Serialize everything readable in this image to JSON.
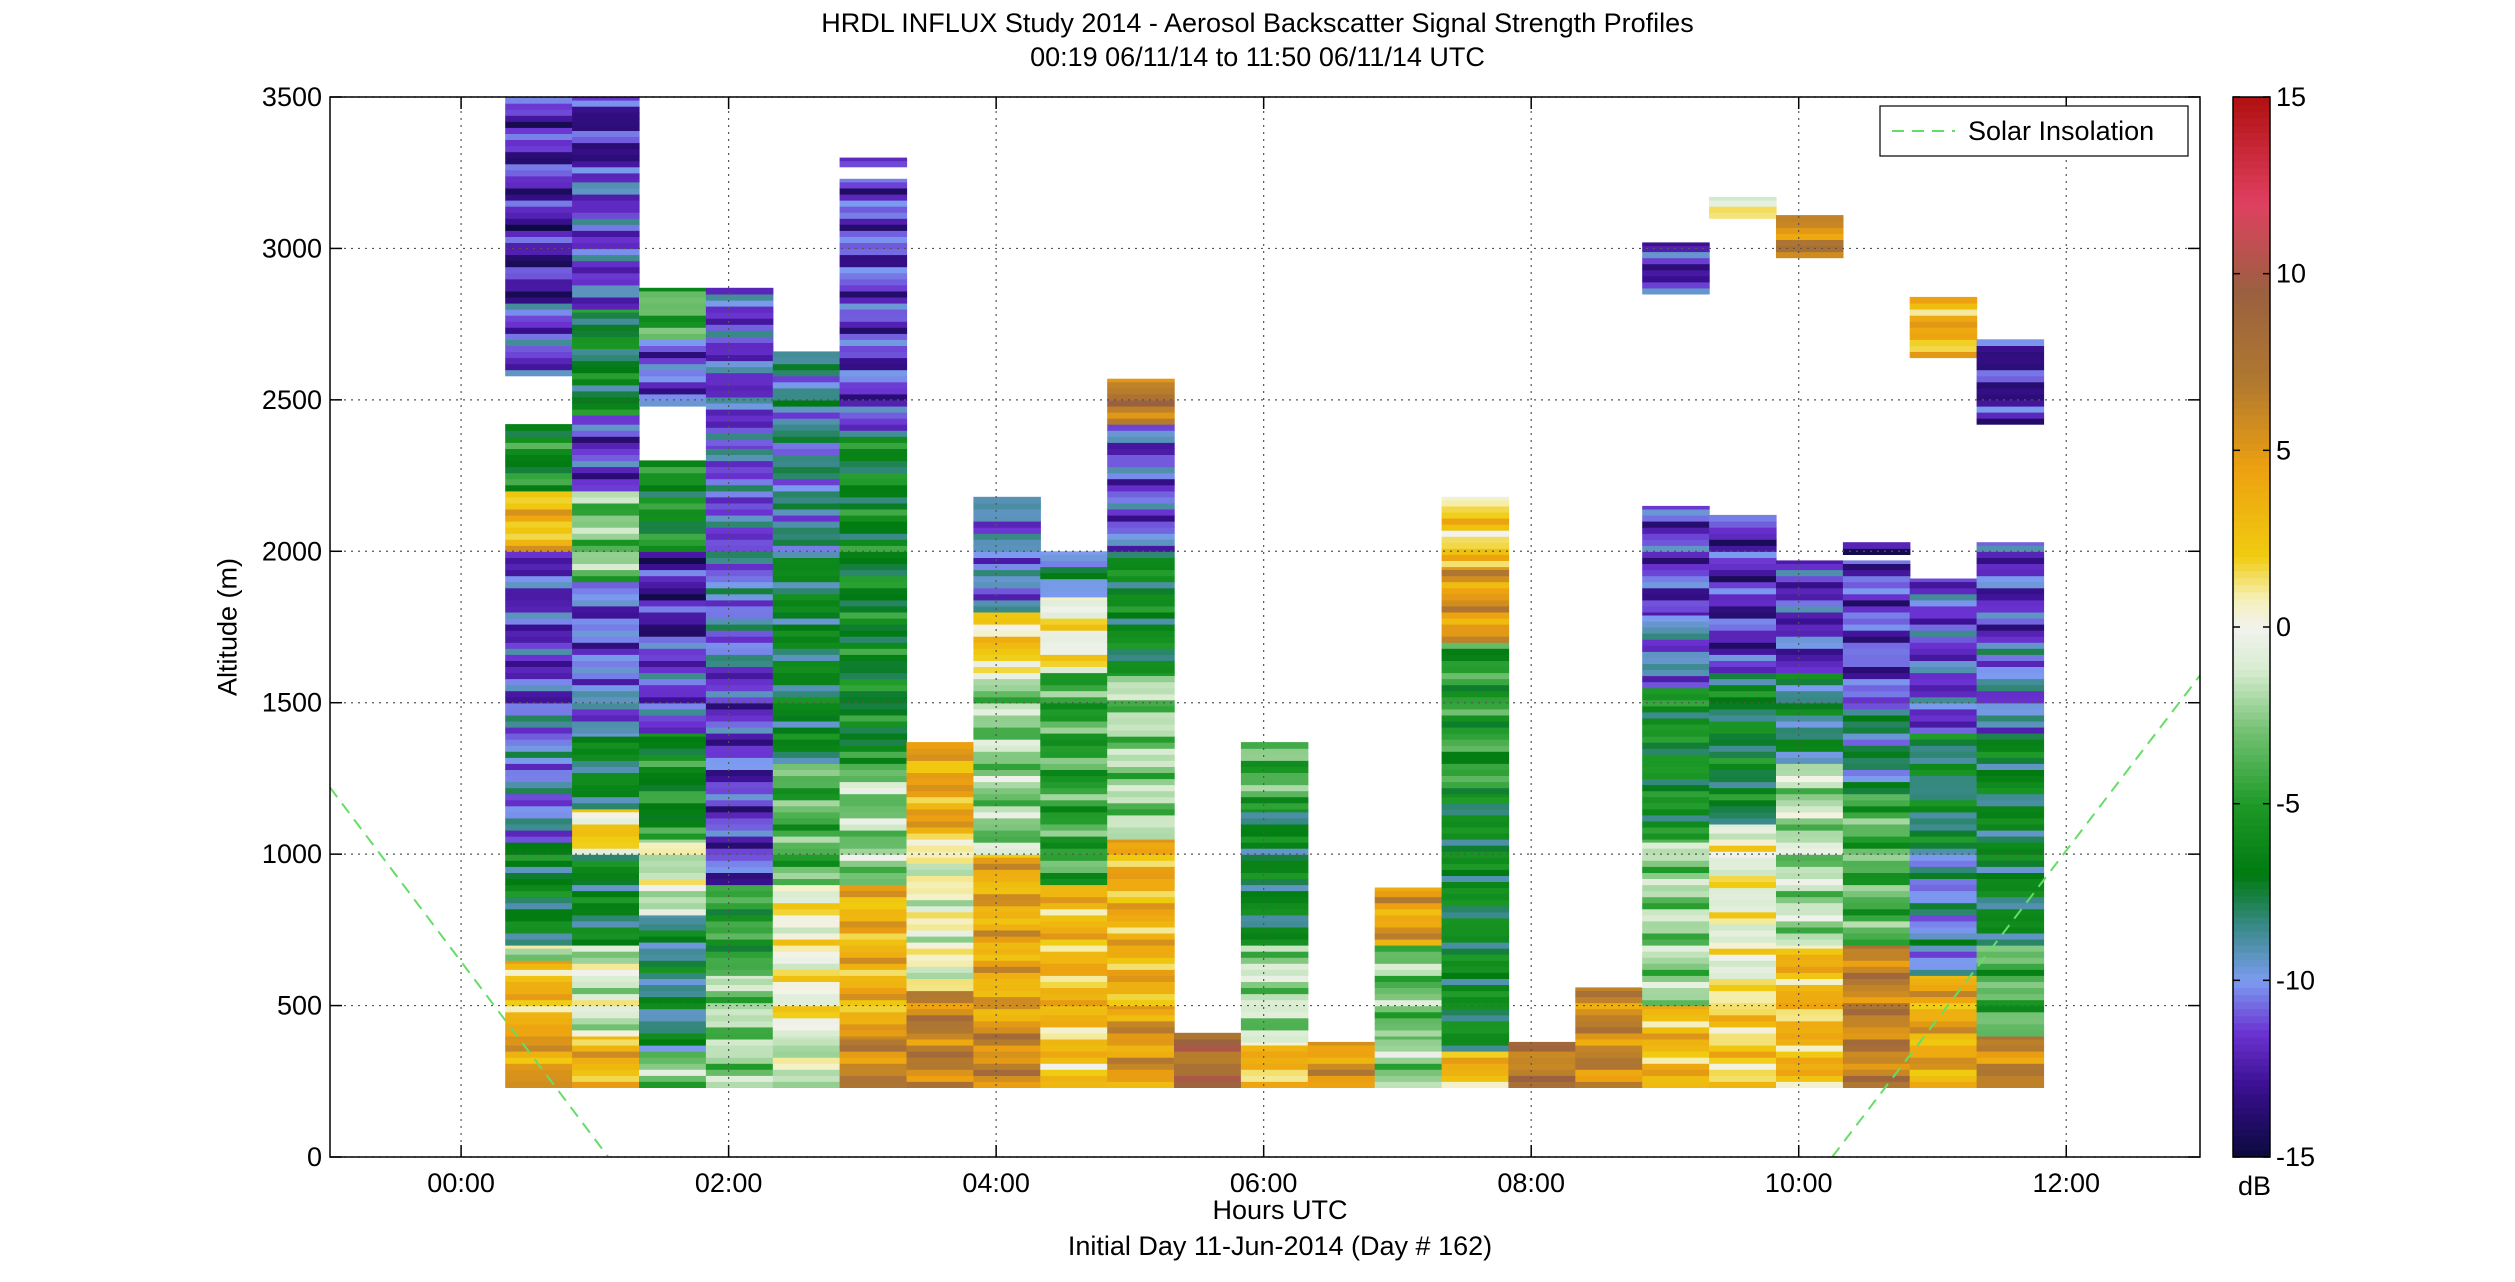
{
  "chart_data": {
    "type": "heatmap",
    "title": "HRDL INFLUX Study 2014 - Aerosol Backscatter Signal Strength Profiles",
    "subtitle": "00:19 06/11/14 to 11:50 06/11/14  UTC",
    "xlabel": "Hours UTC",
    "xlabel2": "Initial Day 11-Jun-2014 (Day # 162)",
    "ylabel": "Altitude (m)",
    "xlim": [
      -0.98,
      13.0
    ],
    "ylim": [
      0,
      3500
    ],
    "grid": true,
    "xticks": [
      {
        "value": 0,
        "label": "00:00"
      },
      {
        "value": 2,
        "label": "02:00"
      },
      {
        "value": 4,
        "label": "04:00"
      },
      {
        "value": 6,
        "label": "06:00"
      },
      {
        "value": 8,
        "label": "08:00"
      },
      {
        "value": 10,
        "label": "10:00"
      },
      {
        "value": 12,
        "label": "12:00"
      }
    ],
    "yticks": [
      0,
      500,
      1000,
      1500,
      2000,
      2500,
      3000,
      3500
    ],
    "colorbar": {
      "label": "dB",
      "min": -15,
      "max": 15,
      "ticks": [
        15,
        10,
        5,
        0,
        -5,
        -10,
        -15
      ],
      "stops": [
        {
          "v": -15,
          "c": "#0a0a3c"
        },
        {
          "v": -13,
          "c": "#3a0f90"
        },
        {
          "v": -11.5,
          "c": "#6a32d0"
        },
        {
          "v": -10,
          "c": "#7c9cf0"
        },
        {
          "v": -8.5,
          "c": "#3a8a8a"
        },
        {
          "v": -7,
          "c": "#007a10"
        },
        {
          "v": -5,
          "c": "#1e9a28"
        },
        {
          "v": -3,
          "c": "#70c070"
        },
        {
          "v": -1.2,
          "c": "#d8ecd0"
        },
        {
          "v": 0,
          "c": "#f2f2ee"
        },
        {
          "v": 0.8,
          "c": "#f5f0b8"
        },
        {
          "v": 2,
          "c": "#f0cc10"
        },
        {
          "v": 4.5,
          "c": "#eda010"
        },
        {
          "v": 7,
          "c": "#b07830"
        },
        {
          "v": 9.5,
          "c": "#9a6040"
        },
        {
          "v": 12,
          "c": "#e04060"
        },
        {
          "v": 15,
          "c": "#b01010"
        }
      ]
    },
    "legend": {
      "entries": [
        "Solar Insolation"
      ],
      "placement": "top-right"
    },
    "series": [
      {
        "name": "Solar Insolation",
        "style": "dashed",
        "color": "#66dd66",
        "points": [
          [
            -0.98,
            1220
          ],
          [
            1.1,
            0
          ],
          [
            10.25,
            0
          ],
          [
            13.0,
            1590
          ]
        ]
      }
    ],
    "profiles": [
      {
        "t": 0.58,
        "segs": [
          [
            230,
            400,
            4.5
          ],
          [
            400,
            650,
            3
          ],
          [
            650,
            700,
            -1
          ],
          [
            700,
            1040,
            -7
          ],
          [
            1040,
            1500,
            -10
          ],
          [
            1500,
            2000,
            -11.5
          ],
          [
            2000,
            2200,
            3
          ],
          [
            2200,
            2420,
            -6
          ],
          [
            2580,
            2820,
            -11
          ],
          [
            2820,
            3180,
            -12.5
          ],
          [
            3180,
            3500,
            -12
          ]
        ]
      },
      {
        "t": 1.08,
        "segs": [
          [
            230,
            400,
            3.5
          ],
          [
            400,
            700,
            -1
          ],
          [
            700,
            1000,
            -7
          ],
          [
            1000,
            1150,
            1.5
          ],
          [
            1150,
            1400,
            -7
          ],
          [
            1400,
            1600,
            -10
          ],
          [
            1600,
            1900,
            -11
          ],
          [
            1900,
            2200,
            -3
          ],
          [
            2200,
            2450,
            -11.5
          ],
          [
            2450,
            2800,
            -7
          ],
          [
            2800,
            3230,
            -11
          ],
          [
            3230,
            3500,
            -12.5
          ]
        ]
      },
      {
        "t": 1.58,
        "segs": [
          [
            230,
            350,
            -3
          ],
          [
            350,
            800,
            -8
          ],
          [
            800,
            1050,
            -1
          ],
          [
            1050,
            1400,
            -6
          ],
          [
            1400,
            1700,
            -11
          ],
          [
            1700,
            2000,
            -12.5
          ],
          [
            2000,
            2300,
            -6
          ],
          [
            2480,
            2700,
            -11
          ],
          [
            2700,
            2870,
            -4
          ]
        ]
      },
      {
        "t": 2.08,
        "segs": [
          [
            230,
            600,
            -2.5
          ],
          [
            600,
            900,
            -5
          ],
          [
            900,
            1600,
            -11.5
          ],
          [
            1600,
            2000,
            -10
          ],
          [
            2000,
            2350,
            -10.5
          ],
          [
            2350,
            2870,
            -11
          ]
        ]
      },
      {
        "t": 2.58,
        "segs": [
          [
            230,
            400,
            -1
          ],
          [
            400,
            900,
            0.5
          ],
          [
            900,
            1300,
            -4
          ],
          [
            1300,
            2000,
            -7
          ],
          [
            2000,
            2660,
            -9
          ]
        ]
      },
      {
        "t": 3.08,
        "segs": [
          [
            230,
            400,
            6
          ],
          [
            400,
            900,
            3.5
          ],
          [
            900,
            1300,
            -2.5
          ],
          [
            1300,
            2400,
            -6.5
          ],
          [
            2400,
            3230,
            -11.5
          ],
          [
            3270,
            3300,
            -12.5
          ]
        ]
      },
      {
        "t": 3.58,
        "segs": [
          [
            230,
            550,
            6.5
          ],
          [
            550,
            1050,
            0
          ],
          [
            1050,
            1370,
            4
          ]
        ]
      },
      {
        "t": 4.08,
        "segs": [
          [
            230,
            450,
            6
          ],
          [
            450,
            1000,
            4
          ],
          [
            1000,
            1600,
            -2.5
          ],
          [
            1600,
            1800,
            2
          ],
          [
            1800,
            2180,
            -10
          ]
        ]
      },
      {
        "t": 4.58,
        "segs": [
          [
            230,
            500,
            2.5
          ],
          [
            500,
            900,
            3
          ],
          [
            900,
            1600,
            -4.5
          ],
          [
            1600,
            1850,
            0.5
          ],
          [
            1850,
            2000,
            -9
          ]
        ]
      },
      {
        "t": 5.08,
        "segs": [
          [
            230,
            500,
            5
          ],
          [
            500,
            1050,
            3.5
          ],
          [
            1050,
            1600,
            -2.5
          ],
          [
            1600,
            2000,
            -6.5
          ],
          [
            2000,
            2420,
            -11
          ],
          [
            2420,
            2570,
            7
          ]
        ]
      },
      {
        "t": 5.58,
        "segs": [
          [
            230,
            410,
            8
          ]
        ]
      },
      {
        "t": 6.08,
        "segs": [
          [
            230,
            380,
            3
          ],
          [
            380,
            700,
            -2
          ],
          [
            700,
            1150,
            -7
          ],
          [
            1150,
            1370,
            -4
          ]
        ]
      },
      {
        "t": 6.58,
        "segs": [
          [
            230,
            380,
            5
          ]
        ]
      },
      {
        "t": 7.08,
        "segs": [
          [
            230,
            400,
            -2.5
          ],
          [
            400,
            700,
            -3
          ],
          [
            700,
            890,
            4.5
          ]
        ]
      },
      {
        "t": 7.58,
        "segs": [
          [
            230,
            350,
            3
          ],
          [
            350,
            1200,
            -6.5
          ],
          [
            1200,
            1700,
            -5
          ],
          [
            1700,
            1950,
            5
          ],
          [
            1950,
            2180,
            2
          ]
        ]
      },
      {
        "t": 8.08,
        "segs": [
          [
            230,
            380,
            7
          ]
        ]
      },
      {
        "t": 8.58,
        "segs": [
          [
            230,
            560,
            6
          ]
        ]
      },
      {
        "t": 9.08,
        "segs": [
          [
            230,
            500,
            3
          ],
          [
            500,
            1050,
            -2.5
          ],
          [
            1050,
            1550,
            -6
          ],
          [
            1550,
            1800,
            -10
          ],
          [
            1800,
            2150,
            -11.5
          ],
          [
            2850,
            3020,
            -12
          ]
        ]
      },
      {
        "t": 9.58,
        "segs": [
          [
            230,
            550,
            2
          ],
          [
            550,
            1100,
            0
          ],
          [
            1100,
            1600,
            -7
          ],
          [
            1600,
            2120,
            -12
          ],
          [
            3100,
            3170,
            0.8
          ]
        ]
      },
      {
        "t": 10.08,
        "segs": [
          [
            230,
            700,
            3
          ],
          [
            700,
            1300,
            -2
          ],
          [
            1300,
            1600,
            -8
          ],
          [
            1600,
            1970,
            -11.5
          ],
          [
            2970,
            3110,
            6
          ]
        ]
      },
      {
        "t": 10.58,
        "segs": [
          [
            230,
            700,
            6.5
          ],
          [
            700,
            1200,
            -4
          ],
          [
            1200,
            1500,
            -8.5
          ],
          [
            1500,
            1970,
            -11.5
          ],
          [
            1990,
            2030,
            -12
          ]
        ]
      },
      {
        "t": 11.08,
        "segs": [
          [
            230,
            600,
            4
          ],
          [
            600,
            1000,
            -9.5
          ],
          [
            1000,
            1400,
            -7.5
          ],
          [
            1400,
            1910,
            -11
          ],
          [
            2640,
            2840,
            3.5
          ]
        ]
      },
      {
        "t": 11.58,
        "segs": [
          [
            230,
            400,
            6
          ],
          [
            400,
            700,
            -4
          ],
          [
            700,
            1400,
            -7
          ],
          [
            1400,
            1700,
            -10
          ],
          [
            1700,
            2030,
            -11.5
          ],
          [
            2420,
            2700,
            -12.5
          ]
        ]
      }
    ]
  }
}
